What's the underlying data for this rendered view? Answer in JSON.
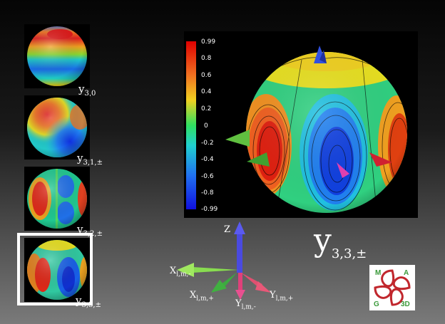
{
  "thumbnails": [
    {
      "label_main": "y",
      "label_sub": "3,0"
    },
    {
      "label_main": "y",
      "label_sub": "3,1,±"
    },
    {
      "label_main": "y",
      "label_sub": "3,2,±"
    },
    {
      "label_main": "y",
      "label_sub": "3,3,±"
    }
  ],
  "colorbar": {
    "ticks": [
      "0.99",
      "0.8",
      "0.6",
      "0.4",
      "0.2",
      "0",
      "-0.2",
      "-0.4",
      "-0.6",
      "-0.8",
      "-0.99"
    ]
  },
  "main_label": {
    "main": "y",
    "sub": "3,3,±"
  },
  "axes": {
    "z": "Z",
    "x_minus_main": "X",
    "x_minus_sub": "l,m,-",
    "x_plus_main": "X",
    "x_plus_sub": "l,m,+",
    "y_minus_main": "Y",
    "y_minus_sub": "l,m,-",
    "y_plus_main": "Y",
    "y_plus_sub": "l,m,+"
  },
  "logo": {
    "text": "MAGSD"
  },
  "colors": {
    "accent_red": "#c1272d",
    "axis_blue": "#4a4ae0",
    "axis_green": "#5cc04a",
    "axis_pink": "#e0407a"
  }
}
